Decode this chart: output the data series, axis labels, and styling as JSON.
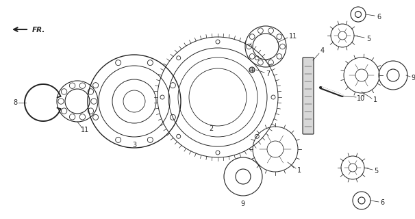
{
  "bg_color": "#ffffff",
  "line_color": "#222222",
  "fr_arrow_text": "FR."
}
